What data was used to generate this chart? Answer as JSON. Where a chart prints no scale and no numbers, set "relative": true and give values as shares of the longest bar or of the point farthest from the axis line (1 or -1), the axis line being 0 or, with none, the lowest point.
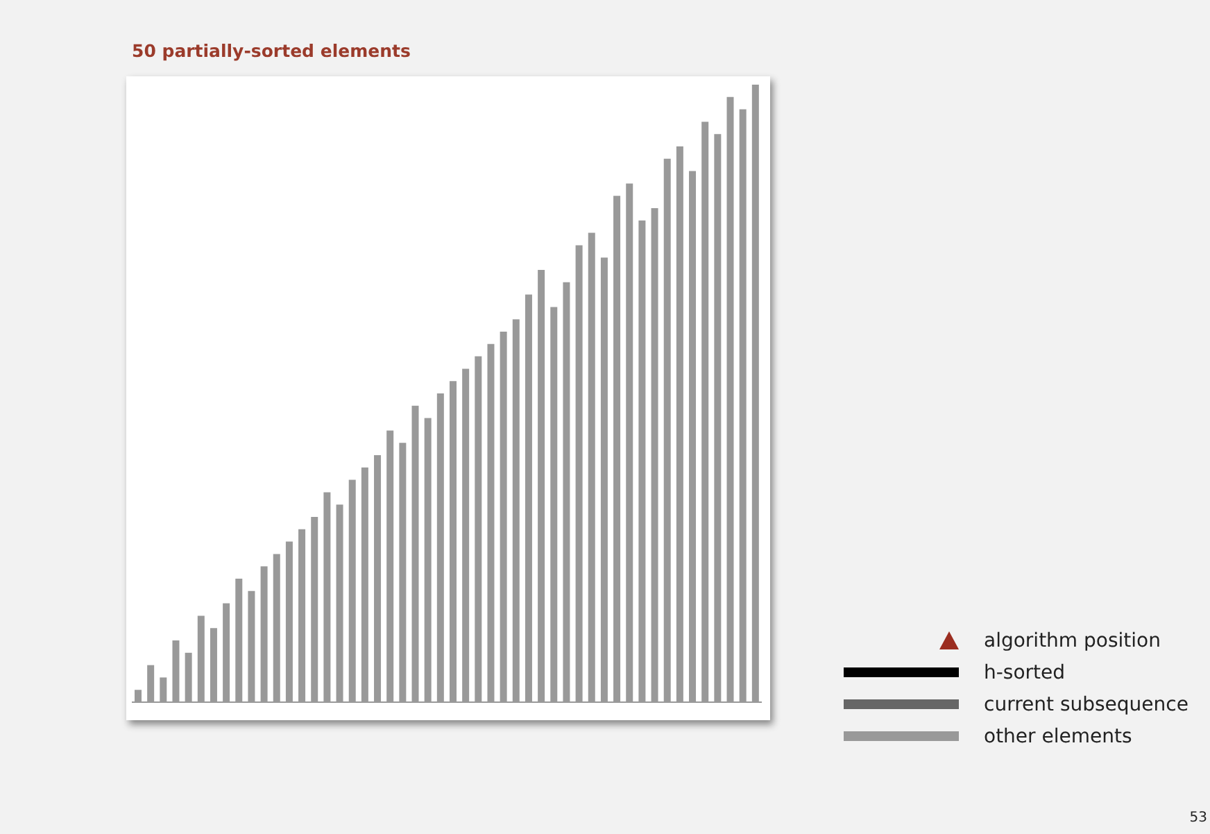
{
  "chart_data": {
    "type": "bar",
    "title": "50 partially-sorted elements",
    "relative": true,
    "tick_labels": false,
    "legend": "bottom right",
    "categories": [
      null,
      null,
      null,
      null,
      null,
      null,
      null,
      null,
      null,
      null,
      null,
      null,
      null,
      null,
      null,
      null,
      null,
      null,
      null,
      null,
      null,
      null,
      null,
      null,
      null,
      null,
      null,
      null,
      null,
      null,
      null,
      null,
      null,
      null,
      null,
      null,
      null,
      null,
      null,
      null,
      null,
      null,
      null,
      null,
      null,
      null,
      null,
      null,
      null,
      null
    ],
    "series": [
      {
        "name": "other elements",
        "color": "#999999",
        "values": [
          0.02,
          0.06,
          0.04,
          0.1,
          0.08,
          0.14,
          0.12,
          0.16,
          0.2,
          0.18,
          0.22,
          0.24,
          0.26,
          0.28,
          0.3,
          0.34,
          0.32,
          0.36,
          0.38,
          0.4,
          0.44,
          0.42,
          0.48,
          0.46,
          0.5,
          0.52,
          0.54,
          0.56,
          0.58,
          0.6,
          0.62,
          0.66,
          0.7,
          0.64,
          0.68,
          0.74,
          0.76,
          0.72,
          0.82,
          0.84,
          0.78,
          0.8,
          0.88,
          0.9,
          0.86,
          0.94,
          0.92,
          0.98,
          0.96,
          1
        ]
      }
    ],
    "annotations": [
      "algorithm position",
      "h-sorted",
      "current subsequence",
      "53"
    ]
  }
}
